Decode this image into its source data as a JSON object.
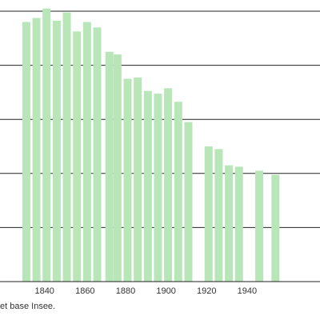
{
  "chart_data": {
    "type": "bar",
    "title": "",
    "xlabel": "",
    "ylabel": "",
    "x_ticks": [
      1840,
      1860,
      1880,
      1900,
      1920,
      1940
    ],
    "x_range": [
      1818,
      1976
    ],
    "y_range": [
      0,
      1010
    ],
    "gridlines": [
      200,
      400,
      600,
      800,
      1000
    ],
    "grid": true,
    "bar_color": "#b8e6b8",
    "grid_color": "#222222",
    "series": [
      {
        "x": [
          1831,
          1836,
          1841,
          1846,
          1851,
          1856,
          1861,
          1866,
          1872,
          1876,
          1881,
          1886,
          1891,
          1896,
          1901,
          1906,
          1911,
          1921,
          1926,
          1931,
          1936,
          1946,
          1954
        ],
        "values": [
          960,
          975,
          1010,
          965,
          995,
          925,
          960,
          940,
          850,
          840,
          750,
          755,
          705,
          695,
          715,
          665,
          590,
          500,
          490,
          430,
          425,
          410,
          395
        ]
      }
    ]
  },
  "source_note": "et base Insee."
}
